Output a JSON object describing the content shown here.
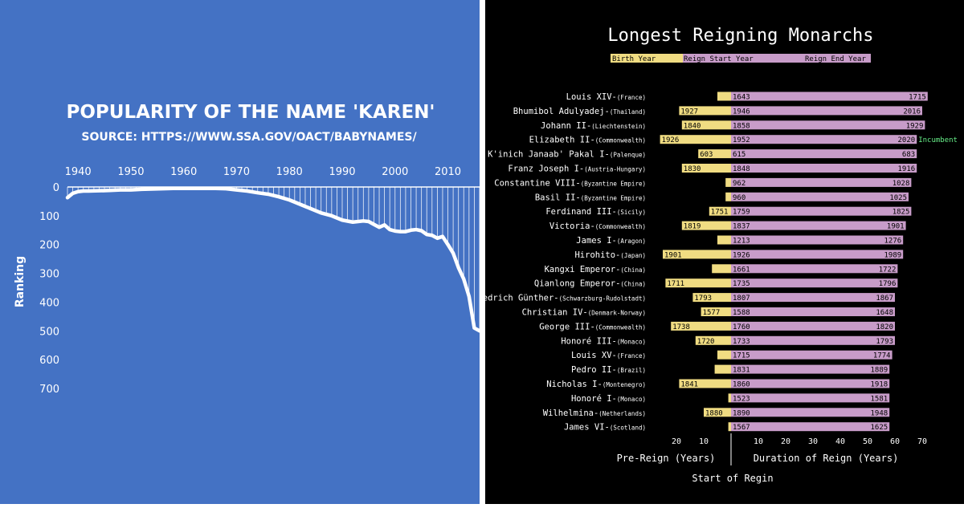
{
  "chart_data": [
    {
      "type": "line",
      "title": "POPULARITY OF THE NAME 'KAREN'",
      "subtitle": "SOURCE: HTTPS://WWW.SSA.GOV/OACT/BABYNAMES/",
      "ylabel": "Ranking",
      "xlabel": "",
      "x_ticks": [
        "1940",
        "1950",
        "1960",
        "1970",
        "1980",
        "1990",
        "2000",
        "2010"
      ],
      "y_ticks": [
        "0",
        "100",
        "200",
        "300",
        "400",
        "500",
        "600",
        "700"
      ],
      "xlim": [
        1938,
        2016
      ],
      "ylim": [
        0,
        700
      ],
      "y_inverted": true,
      "colors": {
        "background": "#4472c4",
        "line": "#ffffff"
      },
      "series": [
        {
          "x": [
            1938,
            1939,
            1940,
            1941,
            1942,
            1944,
            1946,
            1948,
            1950,
            1952,
            1954,
            1956,
            1958,
            1960,
            1962,
            1964,
            1966,
            1968,
            1970,
            1972,
            1974,
            1976,
            1978,
            1980,
            1982,
            1984,
            1986,
            1988,
            1990,
            1992,
            1994,
            1995,
            1996,
            1997,
            1998,
            1999,
            2000,
            2001,
            2002,
            2003,
            2004,
            2005,
            2006,
            2007,
            2008,
            2009,
            2010,
            2011,
            2012,
            2013,
            2014,
            2015,
            2016
          ],
          "y": [
            37,
            22,
            16,
            14,
            14,
            13,
            12,
            10,
            10,
            8,
            7,
            6,
            5,
            5,
            5,
            5,
            5,
            6,
            10,
            14,
            20,
            25,
            34,
            45,
            60,
            75,
            90,
            100,
            115,
            122,
            118,
            120,
            130,
            140,
            132,
            148,
            153,
            155,
            155,
            150,
            148,
            152,
            165,
            168,
            178,
            172,
            200,
            230,
            280,
            320,
            380,
            490,
            500
          ]
        }
      ]
    },
    {
      "type": "bar",
      "title": "Longest Reigning Monarchs",
      "legend": [
        "Birth Year",
        "Reign Start Year",
        "Reign End Year"
      ],
      "xlabel_left": "Pre-Reign (Years)",
      "xlabel_right": "Duration of Reign (Years)",
      "xlabel_center": "Start of Regin",
      "left_ticks": [
        "20",
        "10"
      ],
      "right_ticks": [
        "10",
        "20",
        "30",
        "40",
        "50",
        "60",
        "70"
      ],
      "xlim_left": [
        0,
        25
      ],
      "xlim_right": [
        0,
        75
      ],
      "incumbent_label": "Incumbent",
      "colors": {
        "birth": "#f0dc82",
        "reign": "#c89cc9",
        "incumbent": "#66ee88"
      },
      "rows": [
        {
          "name": "Louis XIV",
          "region": "(France)",
          "birth": 1638,
          "start": 1643,
          "end": 1715,
          "show_birth": false,
          "incumbent": false
        },
        {
          "name": "Bhumibol Adulyadej",
          "region": "(Thailand)",
          "birth": 1927,
          "start": 1946,
          "end": 2016,
          "show_birth": true,
          "incumbent": false
        },
        {
          "name": "Johann II",
          "region": "(Liechtenstein)",
          "birth": 1840,
          "start": 1858,
          "end": 1929,
          "show_birth": true,
          "incumbent": false
        },
        {
          "name": "Elizabeth II",
          "region": "(Commonwealth)",
          "birth": 1926,
          "start": 1952,
          "end": 2020,
          "show_birth": true,
          "incumbent": true
        },
        {
          "name": "K'inich Janaab' Pakal I",
          "region": "(Palenque)",
          "birth": 603,
          "start": 615,
          "end": 683,
          "show_birth": true,
          "incumbent": false
        },
        {
          "name": "Franz Joseph I",
          "region": "(Austria-Hungary)",
          "birth": 1830,
          "start": 1848,
          "end": 1916,
          "show_birth": true,
          "incumbent": false
        },
        {
          "name": "Constantine VIII",
          "region": "(Byzantine Empire)",
          "birth": 960,
          "start": 962,
          "end": 1028,
          "show_birth": false,
          "incumbent": false
        },
        {
          "name": "Basil II",
          "region": "(Byzantine Empire)",
          "birth": 958,
          "start": 960,
          "end": 1025,
          "show_birth": false,
          "incumbent": false
        },
        {
          "name": "Ferdinand III",
          "region": "(Sicily)",
          "birth": 1751,
          "start": 1759,
          "end": 1825,
          "show_birth": true,
          "incumbent": false
        },
        {
          "name": "Victoria",
          "region": "(Commonwealth)",
          "birth": 1819,
          "start": 1837,
          "end": 1901,
          "show_birth": true,
          "incumbent": false
        },
        {
          "name": "James I",
          "region": "(Aragon)",
          "birth": 1208,
          "start": 1213,
          "end": 1276,
          "show_birth": false,
          "incumbent": false
        },
        {
          "name": "Hirohito",
          "region": "(Japan)",
          "birth": 1901,
          "start": 1926,
          "end": 1989,
          "show_birth": true,
          "incumbent": false
        },
        {
          "name": "Kangxi Emperor",
          "region": "(China)",
          "birth": 1654,
          "start": 1661,
          "end": 1722,
          "show_birth": false,
          "incumbent": false
        },
        {
          "name": "Qianlong Emperor",
          "region": "(China)",
          "birth": 1711,
          "start": 1735,
          "end": 1796,
          "show_birth": true,
          "incumbent": false
        },
        {
          "name": "Friedrich Günther",
          "region": "(Schwarzburg-Rudolstadt)",
          "birth": 1793,
          "start": 1807,
          "end": 1867,
          "show_birth": true,
          "incumbent": false
        },
        {
          "name": "Christian IV",
          "region": "(Denmark-Norway)",
          "birth": 1577,
          "start": 1588,
          "end": 1648,
          "show_birth": true,
          "incumbent": false
        },
        {
          "name": "George III",
          "region": "(Commonwealth)",
          "birth": 1738,
          "start": 1760,
          "end": 1820,
          "show_birth": true,
          "incumbent": false
        },
        {
          "name": "Honoré III",
          "region": "(Monaco)",
          "birth": 1720,
          "start": 1733,
          "end": 1793,
          "show_birth": true,
          "incumbent": false
        },
        {
          "name": "Louis XV",
          "region": "(France)",
          "birth": 1710,
          "start": 1715,
          "end": 1774,
          "show_birth": false,
          "incumbent": false
        },
        {
          "name": "Pedro II",
          "region": "(Brazil)",
          "birth": 1825,
          "start": 1831,
          "end": 1889,
          "show_birth": false,
          "incumbent": false
        },
        {
          "name": "Nicholas I",
          "region": "(Montenegro)",
          "birth": 1841,
          "start": 1860,
          "end": 1918,
          "show_birth": true,
          "incumbent": false
        },
        {
          "name": "Honoré I",
          "region": "(Monaco)",
          "birth": 1522,
          "start": 1523,
          "end": 1581,
          "show_birth": false,
          "incumbent": false
        },
        {
          "name": "Wilhelmina",
          "region": "(Netherlands)",
          "birth": 1880,
          "start": 1890,
          "end": 1948,
          "show_birth": true,
          "incumbent": false
        },
        {
          "name": "James VI",
          "region": "(Scotland)",
          "birth": 1566,
          "start": 1567,
          "end": 1625,
          "show_birth": false,
          "incumbent": false
        }
      ]
    }
  ]
}
